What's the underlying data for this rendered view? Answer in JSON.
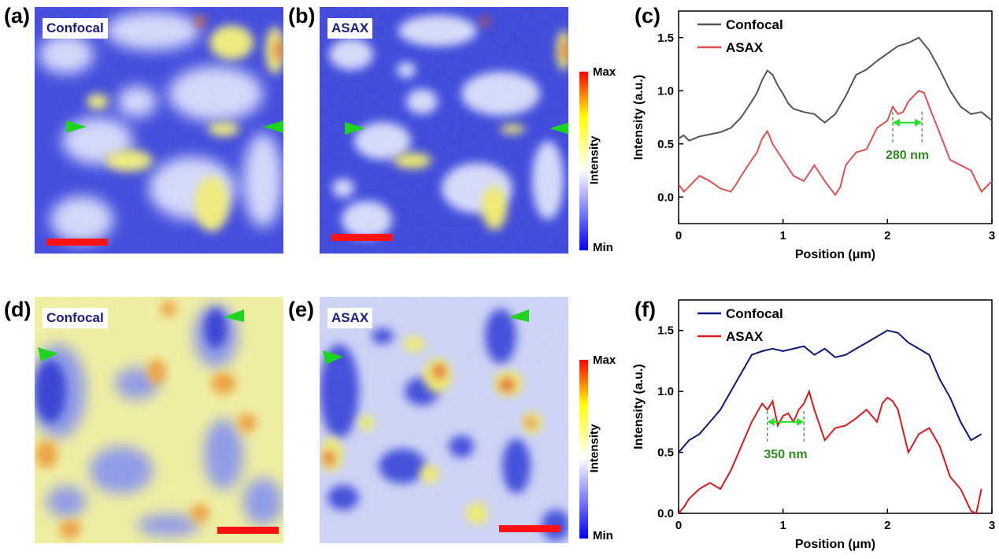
{
  "labels": {
    "a": "(a)",
    "b": "(b)",
    "c": "(c)",
    "d": "(d)",
    "e": "(e)",
    "f": "(f)"
  },
  "images": {
    "a": {
      "tag": "Confocal"
    },
    "b": {
      "tag": "ASAX"
    },
    "d": {
      "tag": "Confocal"
    },
    "e": {
      "tag": "ASAX"
    }
  },
  "colorbar": {
    "max": "Max",
    "min": "Min",
    "title": "Intensity",
    "colors": [
      "#0000ff",
      "#ffffff",
      "#ffff00",
      "#ff0000"
    ]
  },
  "chart_data": [
    {
      "type": "line",
      "title": "",
      "xlabel": "Position (μm)",
      "ylabel": "Intensity (a.u.)",
      "xlim": [
        0,
        3
      ],
      "ylim": [
        -0.25,
        1.75
      ],
      "xticks": [
        "0",
        "1",
        "2",
        "3"
      ],
      "yticks": [
        "0.0",
        "0.5",
        "1.0",
        "1.5"
      ],
      "legend": "top-left",
      "annotation": {
        "text": "280 nm",
        "x1": 2.05,
        "x2": 2.33,
        "y": 0.7
      },
      "series": [
        {
          "name": "Confocal",
          "color": "#555555",
          "x": [
            0,
            0.05,
            0.1,
            0.2,
            0.3,
            0.4,
            0.5,
            0.6,
            0.7,
            0.75,
            0.8,
            0.85,
            0.9,
            0.95,
            1.0,
            1.05,
            1.1,
            1.2,
            1.3,
            1.4,
            1.5,
            1.6,
            1.7,
            1.8,
            1.9,
            2.0,
            2.1,
            2.2,
            2.3,
            2.4,
            2.5,
            2.6,
            2.7,
            2.8,
            2.9,
            3.0
          ],
          "values": [
            0.55,
            0.58,
            0.53,
            0.57,
            0.59,
            0.61,
            0.65,
            0.75,
            0.9,
            0.98,
            1.1,
            1.19,
            1.15,
            1.05,
            0.97,
            0.88,
            0.83,
            0.8,
            0.78,
            0.7,
            0.78,
            0.95,
            1.15,
            1.2,
            1.28,
            1.35,
            1.42,
            1.45,
            1.5,
            1.38,
            1.2,
            1.0,
            0.85,
            0.78,
            0.8,
            0.72
          ]
        },
        {
          "name": "ASAX",
          "color": "#e05050",
          "x": [
            0,
            0.05,
            0.1,
            0.2,
            0.3,
            0.4,
            0.5,
            0.55,
            0.6,
            0.7,
            0.75,
            0.8,
            0.85,
            0.9,
            1.0,
            1.1,
            1.2,
            1.3,
            1.4,
            1.5,
            1.55,
            1.6,
            1.7,
            1.8,
            1.9,
            2.0,
            2.05,
            2.1,
            2.15,
            2.2,
            2.25,
            2.3,
            2.35,
            2.4,
            2.5,
            2.6,
            2.7,
            2.8,
            2.9,
            3.0
          ],
          "values": [
            0.12,
            0.05,
            0.1,
            0.2,
            0.15,
            0.08,
            0.05,
            0.12,
            0.2,
            0.35,
            0.42,
            0.55,
            0.62,
            0.5,
            0.35,
            0.2,
            0.15,
            0.3,
            0.15,
            0.02,
            0.1,
            0.3,
            0.42,
            0.45,
            0.65,
            0.72,
            0.85,
            0.78,
            0.8,
            0.9,
            0.95,
            1.0,
            0.98,
            0.85,
            0.6,
            0.35,
            0.3,
            0.25,
            0.05,
            0.15
          ]
        }
      ]
    },
    {
      "type": "line",
      "title": "",
      "xlabel": "Position (μm)",
      "ylabel": "Intensity (a.u.)",
      "xlim": [
        0,
        3
      ],
      "ylim": [
        0,
        1.75
      ],
      "xticks": [
        "0",
        "1",
        "2",
        "3"
      ],
      "yticks": [
        "0.0",
        "0.5",
        "1.0",
        "1.5"
      ],
      "legend": "top-left",
      "annotation": {
        "text": "350 nm",
        "x1": 0.85,
        "x2": 1.2,
        "y": 0.75
      },
      "series": [
        {
          "name": "Confocal",
          "color": "#0b1680",
          "x": [
            0,
            0.1,
            0.2,
            0.3,
            0.4,
            0.5,
            0.6,
            0.7,
            0.8,
            0.9,
            1.0,
            1.1,
            1.2,
            1.3,
            1.4,
            1.5,
            1.6,
            1.7,
            1.8,
            1.9,
            2.0,
            2.1,
            2.2,
            2.3,
            2.4,
            2.5,
            2.6,
            2.7,
            2.8,
            2.9
          ],
          "values": [
            0.5,
            0.6,
            0.65,
            0.75,
            0.85,
            1.0,
            1.15,
            1.3,
            1.33,
            1.35,
            1.33,
            1.35,
            1.37,
            1.3,
            1.35,
            1.28,
            1.3,
            1.35,
            1.4,
            1.45,
            1.5,
            1.48,
            1.4,
            1.35,
            1.3,
            1.1,
            0.95,
            0.75,
            0.6,
            0.65
          ]
        },
        {
          "name": "ASAX",
          "color": "#d81a1a",
          "x": [
            0,
            0.05,
            0.1,
            0.2,
            0.3,
            0.4,
            0.5,
            0.6,
            0.7,
            0.8,
            0.85,
            0.9,
            0.95,
            1.0,
            1.05,
            1.1,
            1.15,
            1.2,
            1.25,
            1.3,
            1.4,
            1.5,
            1.6,
            1.7,
            1.8,
            1.9,
            1.95,
            2.0,
            2.05,
            2.1,
            2.2,
            2.3,
            2.4,
            2.5,
            2.6,
            2.7,
            2.8,
            2.85,
            2.9
          ],
          "values": [
            0,
            0.05,
            0.12,
            0.2,
            0.25,
            0.2,
            0.35,
            0.55,
            0.75,
            0.9,
            0.85,
            0.92,
            0.72,
            0.8,
            0.82,
            0.75,
            0.85,
            0.9,
            1.0,
            0.85,
            0.6,
            0.7,
            0.72,
            0.78,
            0.85,
            0.75,
            0.9,
            0.95,
            0.92,
            0.85,
            0.5,
            0.65,
            0.7,
            0.55,
            0.3,
            0.2,
            0.02,
            0.0,
            0.2
          ]
        }
      ]
    }
  ]
}
